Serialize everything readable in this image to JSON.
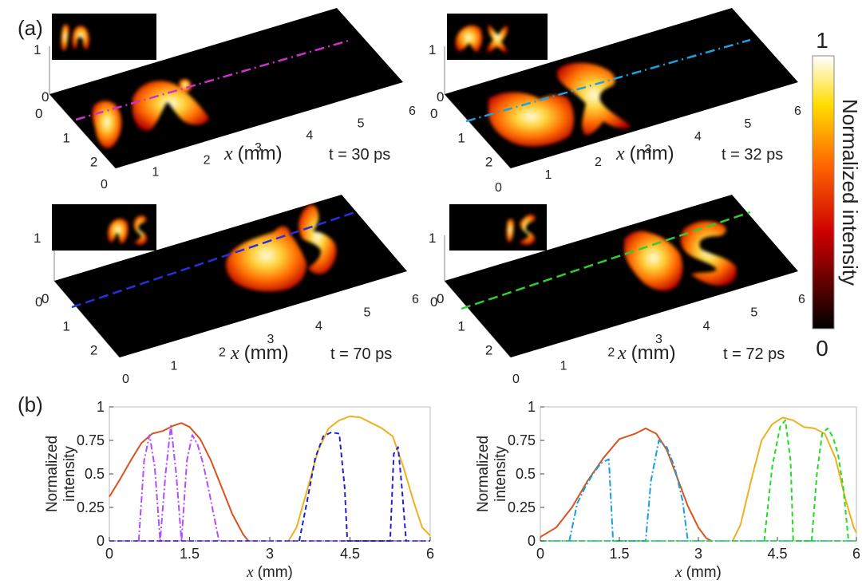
{
  "figure": {
    "panel_a_label": "(a)",
    "panel_b_label": "(b)"
  },
  "colors": {
    "magenta_line": "#cc33cc",
    "cyan_line": "#1fa0e0",
    "blue_line": "#2233dd",
    "green_line": "#33cc33",
    "red_envelope": "#d9531e",
    "yellow_envelope": "#edb120",
    "violet_profile": "#b44dff",
    "cyan_profile": "#1a9ee0",
    "blue_profile": "#1f1fd6",
    "green_profile": "#22dd22"
  },
  "colorbar": {
    "label": "Normalized intensity",
    "max_label": "1",
    "min_label": "0",
    "colormap": "hot"
  },
  "chart_data": [
    {
      "type": "heatmap",
      "panel": "a",
      "projection": "3d-perspective",
      "time_label": "t = 30 ps",
      "xlabel": "x (mm)",
      "x_ticks": [
        "0",
        "1",
        "2",
        "3",
        "4",
        "5",
        "6"
      ],
      "y_ticks": [
        "0",
        "1",
        "2"
      ],
      "z_ticks": [
        "0",
        "1"
      ],
      "xlim": [
        0,
        6
      ],
      "ylim": [
        0,
        2.5
      ],
      "zlim": [
        0,
        1
      ],
      "cut_line_style": "dash-dot",
      "cut_line_color": "#cc33cc"
    },
    {
      "type": "heatmap",
      "panel": "a",
      "projection": "3d-perspective",
      "time_label": "t = 32 ps",
      "xlabel": "x (mm)",
      "x_ticks": [
        "0",
        "1",
        "2",
        "3",
        "4",
        "5",
        "6"
      ],
      "y_ticks": [
        "0",
        "1",
        "2"
      ],
      "z_ticks": [
        "0",
        "1"
      ],
      "xlim": [
        0,
        6
      ],
      "ylim": [
        0,
        2.5
      ],
      "zlim": [
        0,
        1
      ],
      "cut_line_style": "dash-dot",
      "cut_line_color": "#1fa0e0"
    },
    {
      "type": "heatmap",
      "panel": "a",
      "projection": "3d-perspective",
      "time_label": "t = 70 ps",
      "xlabel": "x (mm)",
      "x_ticks": [
        "0",
        "1",
        "2",
        "3",
        "4",
        "5",
        "6"
      ],
      "y_ticks": [
        "0",
        "1",
        "2"
      ],
      "z_ticks": [
        "0",
        "1"
      ],
      "xlim": [
        0,
        6
      ],
      "ylim": [
        0,
        2.5
      ],
      "zlim": [
        0,
        1
      ],
      "cut_line_style": "dashed",
      "cut_line_color": "#2233dd"
    },
    {
      "type": "heatmap",
      "panel": "a",
      "projection": "3d-perspective",
      "time_label": "t = 72 ps",
      "xlabel": "x (mm)",
      "x_ticks": [
        "0",
        "1",
        "2",
        "3",
        "4",
        "5",
        "6"
      ],
      "y_ticks": [
        "0",
        "1",
        "2"
      ],
      "z_ticks": [
        "0",
        "1"
      ],
      "xlim": [
        0,
        6
      ],
      "ylim": [
        0,
        2.5
      ],
      "zlim": [
        0,
        1
      ],
      "cut_line_style": "dashed",
      "cut_line_color": "#33cc33"
    },
    {
      "type": "line",
      "panel": "b",
      "xlabel": "x (mm)",
      "ylabel": "Normalized intensity",
      "xlim": [
        0,
        6
      ],
      "ylim": [
        0,
        1
      ],
      "x_ticks": [
        0,
        1.5,
        3,
        4.5,
        6
      ],
      "y_ticks": [
        0,
        0.25,
        0.5,
        0.75,
        1
      ],
      "series": [
        {
          "color": "#d9531e",
          "style": "solid",
          "x": [
            0,
            0.2,
            0.4,
            0.6,
            0.8,
            1.0,
            1.2,
            1.35,
            1.5,
            1.7,
            1.9,
            2.1,
            2.3,
            2.5,
            2.6
          ],
          "y": [
            0.33,
            0.46,
            0.6,
            0.73,
            0.8,
            0.82,
            0.86,
            0.88,
            0.85,
            0.76,
            0.6,
            0.4,
            0.2,
            0.05,
            0
          ]
        },
        {
          "color": "#edb120",
          "style": "solid",
          "x": [
            3.35,
            3.5,
            3.7,
            3.9,
            4.1,
            4.3,
            4.5,
            4.7,
            4.9,
            5.1,
            5.3,
            5.5,
            5.7,
            5.85,
            6.0
          ],
          "y": [
            0,
            0.1,
            0.38,
            0.67,
            0.84,
            0.9,
            0.93,
            0.92,
            0.88,
            0.84,
            0.78,
            0.55,
            0.28,
            0.1,
            0.04
          ]
        },
        {
          "color": "#b44dff",
          "style": "dash-dot",
          "x": [
            0.55,
            0.65,
            0.75,
            0.85,
            0.95,
            1.05,
            1.15,
            1.25,
            1.35,
            1.45,
            1.55,
            1.65,
            1.75,
            1.85,
            1.95,
            2.05
          ],
          "y": [
            0,
            0.6,
            0.79,
            0.55,
            0,
            0.5,
            0.86,
            0.5,
            0,
            0.6,
            0.79,
            0.72,
            0.58,
            0.4,
            0.2,
            0
          ]
        },
        {
          "color": "#1f1fd6",
          "style": "dashed",
          "x": [
            3.55,
            3.7,
            3.85,
            4.0,
            4.15,
            4.3,
            4.4,
            4.45,
            5.25,
            5.32,
            5.4,
            5.47,
            5.55
          ],
          "y": [
            0,
            0.3,
            0.62,
            0.78,
            0.81,
            0.8,
            0.4,
            0,
            0,
            0.65,
            0.7,
            0.4,
            0
          ]
        }
      ]
    },
    {
      "type": "line",
      "panel": "b",
      "xlabel": "x (mm)",
      "ylabel": "Normalized intensity",
      "xlim": [
        0,
        6
      ],
      "ylim": [
        0,
        1
      ],
      "x_ticks": [
        0,
        1.5,
        3,
        4.5,
        6
      ],
      "y_ticks": [
        0,
        0.25,
        0.5,
        0.75,
        1
      ],
      "series": [
        {
          "color": "#d9531e",
          "style": "solid",
          "x": [
            0,
            0.3,
            0.6,
            0.9,
            1.2,
            1.5,
            1.8,
            2.0,
            2.2,
            2.4,
            2.6,
            2.8,
            3.0,
            3.15,
            3.25
          ],
          "y": [
            0.03,
            0.1,
            0.25,
            0.45,
            0.62,
            0.76,
            0.8,
            0.84,
            0.8,
            0.68,
            0.47,
            0.26,
            0.1,
            0.02,
            0
          ]
        },
        {
          "color": "#edb120",
          "style": "solid",
          "x": [
            3.65,
            3.8,
            4.0,
            4.2,
            4.4,
            4.6,
            4.8,
            5.0,
            5.2,
            5.4,
            5.6,
            5.8,
            5.95,
            6.0
          ],
          "y": [
            0,
            0.12,
            0.45,
            0.75,
            0.87,
            0.92,
            0.9,
            0.85,
            0.84,
            0.8,
            0.62,
            0.3,
            0.1,
            0.06
          ]
        },
        {
          "color": "#1a9ee0",
          "style": "dash-dot",
          "x": [
            0.55,
            0.7,
            0.85,
            1.0,
            1.15,
            1.3,
            1.38,
            2.0,
            2.1,
            2.25,
            2.4,
            2.55,
            2.7,
            2.8
          ],
          "y": [
            0,
            0.28,
            0.4,
            0.5,
            0.58,
            0.61,
            0,
            0,
            0.45,
            0.75,
            0.7,
            0.55,
            0.3,
            0
          ]
        },
        {
          "color": "#22dd22",
          "style": "dashed",
          "x": [
            4.25,
            4.4,
            4.55,
            4.65,
            4.75,
            4.8,
            5.15,
            5.25,
            5.35,
            5.45,
            5.55,
            5.65,
            5.75,
            5.85
          ],
          "y": [
            0,
            0.55,
            0.85,
            0.9,
            0.6,
            0,
            0,
            0.5,
            0.8,
            0.84,
            0.78,
            0.65,
            0.4,
            0
          ]
        }
      ]
    }
  ]
}
